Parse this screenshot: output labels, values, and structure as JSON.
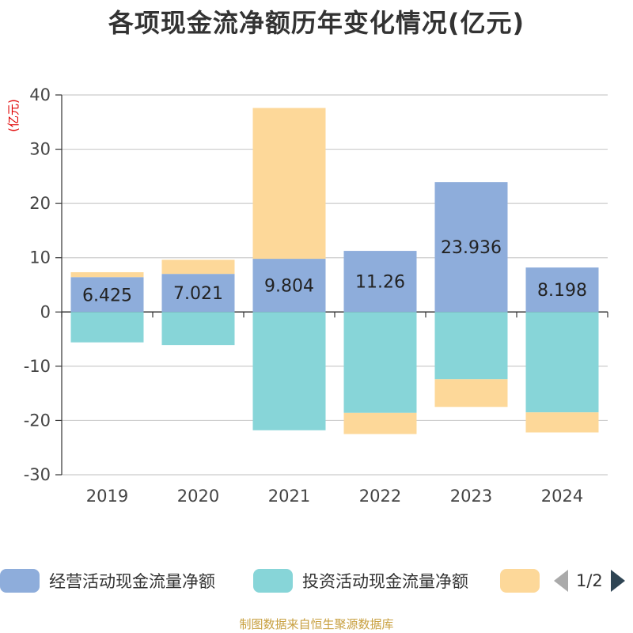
{
  "chart_data": {
    "type": "bar",
    "stacked": true,
    "title": "各项现金流净额历年变化情况(亿元)",
    "ylabel": "(亿元)",
    "xlabel": "",
    "ylim": [
      -30,
      40
    ],
    "yticks": [
      -30,
      -20,
      -10,
      0,
      10,
      20,
      30,
      40
    ],
    "grid": true,
    "categories": [
      "2019",
      "2020",
      "2021",
      "2022",
      "2023",
      "2024"
    ],
    "series": [
      {
        "name": "经营活动现金流量净额",
        "color": "#8eaddb",
        "values": [
          6.425,
          7.021,
          9.804,
          11.26,
          23.936,
          8.198
        ],
        "labels": [
          "6.425",
          "7.021",
          "9.804",
          "11.26",
          "23.936",
          "8.198"
        ]
      },
      {
        "name": "投资活动现金流量净额",
        "color": "#87d5d8",
        "values": [
          -5.6,
          -6.1,
          -21.8,
          -18.6,
          -12.4,
          -18.5
        ]
      },
      {
        "name": "",
        "color": "#fdd899",
        "values": [
          0.9,
          2.6,
          27.8,
          -3.9,
          -5.1,
          -3.7
        ]
      }
    ],
    "legend_position": "bottom"
  },
  "legend": {
    "page_indicator": "1/2"
  },
  "footer": {
    "source": "制图数据来自恒生聚源数据库"
  }
}
